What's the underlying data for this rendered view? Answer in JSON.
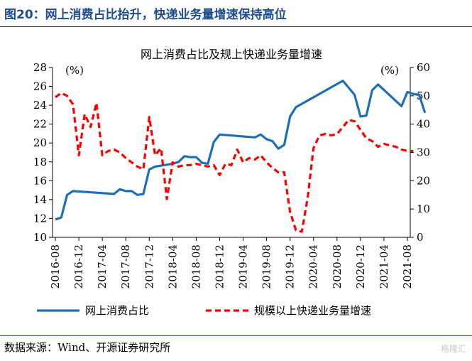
{
  "figure_title": "图20：网上消费占比抬升，快递业务量增速保持高位",
  "source": "数据来源：Wind、开源证券研究所",
  "watermark": "格隆汇",
  "chart_data": {
    "type": "line",
    "title": "网上消费占比及规上快递业务量增速",
    "left_axis": {
      "unit_label": "(%)",
      "ylim": [
        10,
        28
      ],
      "ticks": [
        10,
        12,
        14,
        16,
        18,
        20,
        22,
        24,
        26,
        28
      ]
    },
    "right_axis": {
      "unit_label": "(%)",
      "ylim": [
        0,
        60
      ],
      "ticks": [
        0,
        10,
        20,
        30,
        40,
        50,
        60
      ]
    },
    "x_tick_labels": [
      "2016-08",
      "2016-12",
      "2017-04",
      "2017-08",
      "2017-12",
      "2018-04",
      "2018-08",
      "2018-12",
      "2019-04",
      "2019-08",
      "2019-12",
      "2020-04",
      "2020-08",
      "2020-12",
      "2021-04",
      "2021-08"
    ],
    "x_range": [
      "2016-08",
      "2021-08"
    ],
    "legend_position": "bottom",
    "colors": {
      "online_share": "#1f6fb4",
      "express_growth": "#ff0000"
    },
    "series": [
      {
        "name": "网上消费占比",
        "axis": "left",
        "style": "solid",
        "points": [
          [
            "2016-08",
            11.9
          ],
          [
            "2016-09",
            12.1
          ],
          [
            "2016-10",
            14.5
          ],
          [
            "2016-11",
            14.9
          ],
          [
            "2017-06",
            14.6
          ],
          [
            "2017-07",
            15.1
          ],
          [
            "2017-08",
            14.9
          ],
          [
            "2017-09",
            14.9
          ],
          [
            "2017-10",
            14.5
          ],
          [
            "2017-11",
            14.6
          ],
          [
            "2017-12",
            17.2
          ],
          [
            "2018-01",
            17.5
          ],
          [
            "2018-04",
            17.8
          ],
          [
            "2018-05",
            18.0
          ],
          [
            "2018-06",
            18.6
          ],
          [
            "2018-07",
            18.5
          ],
          [
            "2018-08",
            18.5
          ],
          [
            "2018-09",
            17.9
          ],
          [
            "2018-10",
            17.8
          ],
          [
            "2018-11",
            20.1
          ],
          [
            "2018-12",
            20.9
          ],
          [
            "2019-06",
            20.6
          ],
          [
            "2019-07",
            20.9
          ],
          [
            "2019-08",
            20.4
          ],
          [
            "2019-09",
            20.2
          ],
          [
            "2019-10",
            19.4
          ],
          [
            "2019-11",
            19.8
          ],
          [
            "2019-12",
            22.8
          ],
          [
            "2020-01",
            23.8
          ],
          [
            "2020-09",
            26.6
          ],
          [
            "2020-11",
            25.1
          ],
          [
            "2020-12",
            22.8
          ],
          [
            "2021-01",
            22.9
          ],
          [
            "2021-02",
            25.6
          ],
          [
            "2021-03",
            26.2
          ],
          [
            "2021-07",
            23.9
          ],
          [
            "2021-08",
            25.4
          ],
          [
            "2021-09",
            25.2
          ],
          [
            "2021-10",
            25.1
          ],
          [
            "2021-11",
            23.2
          ]
        ]
      },
      {
        "name": "规模以上快递业务量增速",
        "axis": "right",
        "style": "dashed",
        "points": [
          [
            "2016-08",
            49.5
          ],
          [
            "2016-09",
            51.0
          ],
          [
            "2016-10",
            50.0
          ],
          [
            "2016-11",
            47.0
          ],
          [
            "2016-12",
            29.0
          ],
          [
            "2017-01",
            43.5
          ],
          [
            "2017-02",
            39.0
          ],
          [
            "2017-03",
            47.5
          ],
          [
            "2017-04",
            29.0
          ],
          [
            "2017-05",
            30.5
          ],
          [
            "2017-06",
            31.0
          ],
          [
            "2017-07",
            30.0
          ],
          [
            "2017-08",
            28.0
          ],
          [
            "2017-09",
            26.5
          ],
          [
            "2017-10",
            25.0
          ],
          [
            "2017-11",
            24.0
          ],
          [
            "2017-12",
            42.5
          ],
          [
            "2018-01",
            29.0
          ],
          [
            "2018-02",
            31.5
          ],
          [
            "2018-03",
            13.5
          ],
          [
            "2018-04",
            26.5
          ],
          [
            "2018-05",
            25.0
          ],
          [
            "2018-06",
            25.5
          ],
          [
            "2018-07",
            25.5
          ],
          [
            "2018-08",
            26.0
          ],
          [
            "2018-09",
            25.5
          ],
          [
            "2018-10",
            25.0
          ],
          [
            "2018-11",
            25.5
          ],
          [
            "2018-12",
            22.0
          ],
          [
            "2019-01",
            26.0
          ],
          [
            "2019-02",
            25.5
          ],
          [
            "2019-03",
            31.0
          ],
          [
            "2019-04",
            26.5
          ],
          [
            "2019-05",
            28.0
          ],
          [
            "2019-06",
            27.5
          ],
          [
            "2019-07",
            29.0
          ],
          [
            "2019-08",
            26.5
          ],
          [
            "2019-09",
            24.5
          ],
          [
            "2019-10",
            23.0
          ],
          [
            "2019-11",
            23.0
          ],
          [
            "2019-12",
            9.0
          ],
          [
            "2020-01",
            2.5
          ],
          [
            "2020-02",
            2.0
          ],
          [
            "2020-03",
            14.0
          ],
          [
            "2020-04",
            31.5
          ],
          [
            "2020-05",
            36.0
          ],
          [
            "2020-06",
            36.5
          ],
          [
            "2020-07",
            36.0
          ],
          [
            "2020-08",
            36.5
          ],
          [
            "2020-09",
            39.0
          ],
          [
            "2020-10",
            41.5
          ],
          [
            "2020-11",
            41.0
          ],
          [
            "2020-12",
            38.0
          ],
          [
            "2021-01",
            35.0
          ],
          [
            "2021-02",
            34.0
          ],
          [
            "2021-03",
            32.0
          ],
          [
            "2021-04",
            33.0
          ],
          [
            "2021-05",
            32.5
          ],
          [
            "2021-06",
            32.0
          ],
          [
            "2021-07",
            31.0
          ],
          [
            "2021-08",
            30.5
          ],
          [
            "2021-09",
            30.5
          ]
        ]
      }
    ]
  }
}
